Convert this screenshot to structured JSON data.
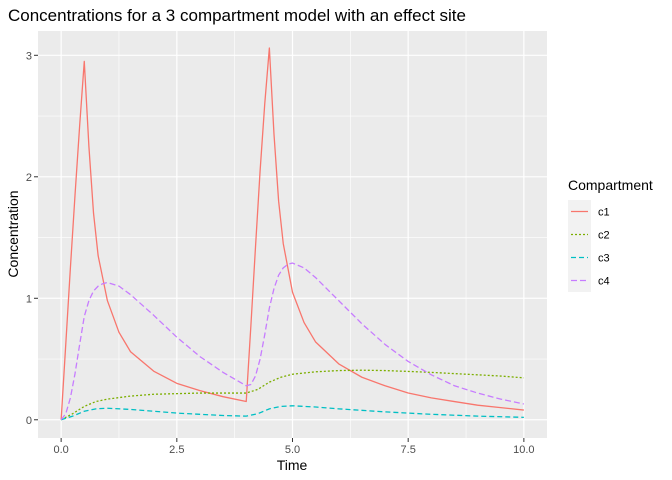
{
  "chart_data": {
    "type": "line",
    "title": "Concentrations for a 3 compartment model with an effect site",
    "xlabel": "Time",
    "ylabel": "Concentration",
    "xlim": [
      -0.5,
      10.5
    ],
    "ylim": [
      -0.15,
      3.2
    ],
    "xticks": [
      0,
      2.5,
      5,
      7.5,
      10
    ],
    "xtick_labels": [
      "0.0",
      "2.5",
      "5.0",
      "7.5",
      "10.0"
    ],
    "yticks": [
      0,
      1,
      2,
      3
    ],
    "ytick_labels": [
      "0",
      "1",
      "2",
      "3"
    ],
    "grid": true,
    "legend": {
      "title": "Compartment",
      "position": "right"
    },
    "series": [
      {
        "name": "c1",
        "color": "#F8766D",
        "dash": "",
        "x": [
          0,
          0.1,
          0.2,
          0.3,
          0.4,
          0.5,
          0.6,
          0.7,
          0.8,
          1.0,
          1.25,
          1.5,
          2.0,
          2.5,
          3.0,
          3.5,
          4.0,
          4.0,
          4.1,
          4.2,
          4.3,
          4.4,
          4.5,
          4.6,
          4.7,
          4.8,
          5.0,
          5.25,
          5.5,
          6.0,
          6.5,
          7.0,
          7.5,
          8.0,
          8.5,
          9.0,
          9.5,
          10.0
        ],
        "y": [
          0,
          0.62,
          1.25,
          1.85,
          2.42,
          2.95,
          2.25,
          1.7,
          1.35,
          0.98,
          0.72,
          0.56,
          0.4,
          0.3,
          0.24,
          0.19,
          0.15,
          0.15,
          0.77,
          1.42,
          2.05,
          2.6,
          3.06,
          2.35,
          1.8,
          1.45,
          1.05,
          0.8,
          0.64,
          0.46,
          0.35,
          0.28,
          0.22,
          0.18,
          0.15,
          0.12,
          0.1,
          0.08
        ]
      },
      {
        "name": "c2",
        "color": "#7CAE00",
        "dash": "2,2",
        "x": [
          0,
          0.25,
          0.5,
          0.75,
          1.0,
          1.5,
          2.0,
          2.5,
          3.0,
          3.5,
          4.0,
          4.25,
          4.5,
          4.75,
          5.0,
          5.5,
          6.0,
          6.5,
          7.0,
          7.5,
          8.0,
          8.5,
          9.0,
          9.5,
          10.0
        ],
        "y": [
          0,
          0.05,
          0.11,
          0.15,
          0.17,
          0.195,
          0.21,
          0.215,
          0.22,
          0.22,
          0.22,
          0.25,
          0.31,
          0.35,
          0.375,
          0.395,
          0.405,
          0.408,
          0.405,
          0.398,
          0.39,
          0.38,
          0.37,
          0.36,
          0.345
        ]
      },
      {
        "name": "c3",
        "color": "#00BFC4",
        "dash": "5,3",
        "x": [
          0,
          0.25,
          0.5,
          0.75,
          1.0,
          1.5,
          2.0,
          2.5,
          3.0,
          3.5,
          4.0,
          4.25,
          4.5,
          4.75,
          5.0,
          5.5,
          6.0,
          7.0,
          8.0,
          9.0,
          10.0
        ],
        "y": [
          0,
          0.03,
          0.07,
          0.09,
          0.095,
          0.085,
          0.07,
          0.055,
          0.045,
          0.035,
          0.03,
          0.05,
          0.09,
          0.11,
          0.115,
          0.105,
          0.09,
          0.065,
          0.045,
          0.03,
          0.02
        ]
      },
      {
        "name": "c4",
        "color": "#C77CFF",
        "dash": "6,3",
        "x": [
          0,
          0.1,
          0.2,
          0.3,
          0.4,
          0.5,
          0.6,
          0.7,
          0.8,
          0.9,
          1.0,
          1.25,
          1.5,
          2.0,
          2.5,
          3.0,
          3.5,
          4.0,
          4.1,
          4.2,
          4.3,
          4.4,
          4.5,
          4.6,
          4.7,
          4.8,
          4.9,
          5.0,
          5.25,
          5.5,
          6.0,
          6.5,
          7.0,
          7.5,
          8.0,
          8.5,
          9.0,
          9.5,
          10.0
        ],
        "y": [
          0,
          0.05,
          0.18,
          0.38,
          0.62,
          0.85,
          0.98,
          1.06,
          1.1,
          1.12,
          1.13,
          1.1,
          1.03,
          0.86,
          0.68,
          0.52,
          0.39,
          0.28,
          0.29,
          0.36,
          0.5,
          0.7,
          0.92,
          1.08,
          1.19,
          1.25,
          1.28,
          1.29,
          1.25,
          1.17,
          0.98,
          0.79,
          0.62,
          0.48,
          0.37,
          0.28,
          0.22,
          0.17,
          0.13
        ]
      }
    ]
  }
}
